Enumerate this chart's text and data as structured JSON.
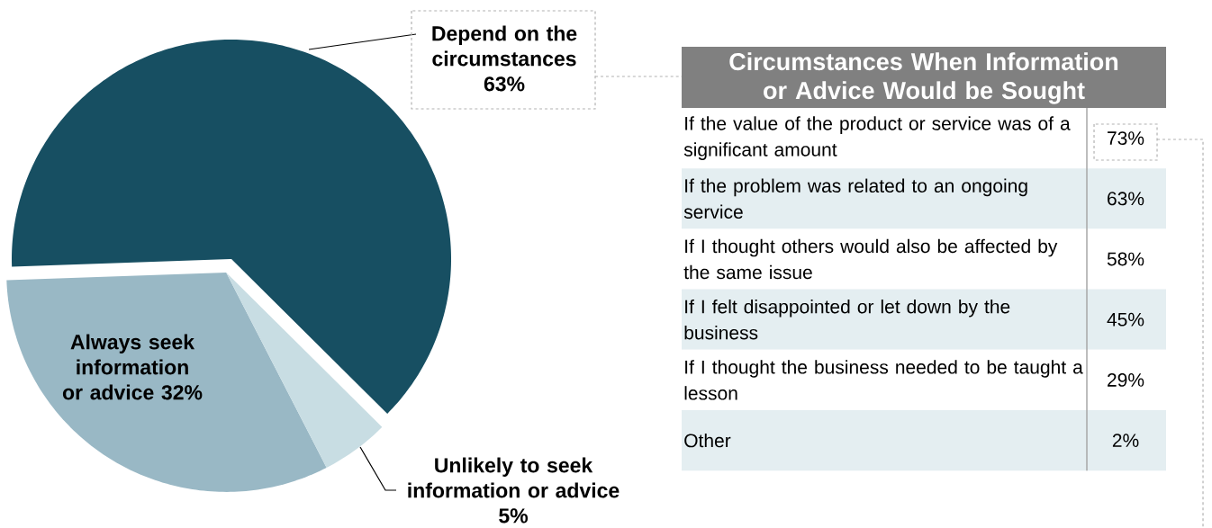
{
  "chart_data": [
    {
      "type": "pie",
      "categories": [
        "Depend  on the circumstances",
        "Always seek information or advice",
        "Unlikely to seek information or advice"
      ],
      "values": [
        63,
        32,
        5
      ],
      "value_labels": [
        "63%",
        "32%",
        "5%"
      ],
      "colors": [
        "#174f62",
        "#99b8c5",
        "#c8dde3"
      ]
    },
    {
      "type": "other",
      "title": "Circumstances When Information or Advice Would be Sought",
      "categories": [
        "If the value of the product or service was of a significant amount",
        "If the problem was related to an ongoing service",
        "If I thought others would also be affected by the same issue",
        "If I felt disappointed or let down by the business",
        "If I thought the business needed to be taught a lesson",
        "Other"
      ],
      "value_labels": [
        "73%",
        "63%",
        "58%",
        "45%",
        "29%",
        "2%"
      ]
    }
  ]
}
